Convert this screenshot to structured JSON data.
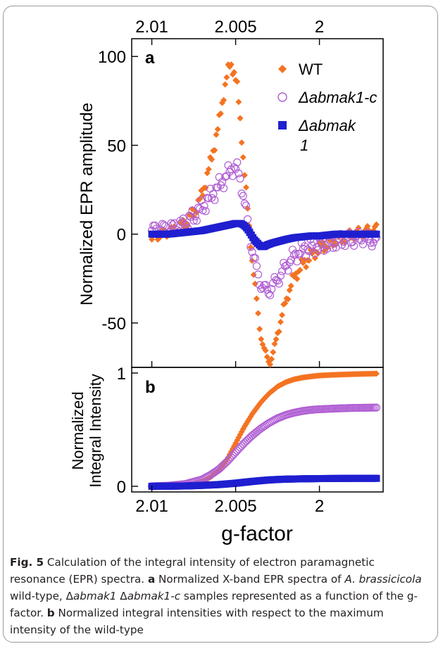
{
  "colors": {
    "wt": "#f47321",
    "comp": "#b05fd3",
    "mut": "#1f1fd0"
  },
  "chart_data": [
    {
      "type": "scatter",
      "panel_label": "a",
      "ylabel": "Normalized EPR amplitude",
      "top_xlabel_ticks": [
        "2.01",
        "2.005",
        "2"
      ],
      "x_ticks": [
        2.01,
        2.005,
        2.0
      ],
      "xlim": [
        2.0112,
        1.9962
      ],
      "ylim": [
        -75,
        110
      ],
      "y_ticks": [
        "100",
        "50",
        "0",
        "-50"
      ],
      "y_tick_values": [
        100,
        50,
        0,
        -50
      ],
      "legend_position": "top-right",
      "series": [
        {
          "name": "WT",
          "marker": "diamond",
          "points": [
            [
              2.01,
              -3
            ],
            [
              2.0095,
              0
            ],
            [
              2.009,
              1
            ],
            [
              2.0085,
              3
            ],
            [
              2.008,
              6
            ],
            [
              2.0075,
              12
            ],
            [
              2.007,
              22
            ],
            [
              2.0065,
              40
            ],
            [
              2.006,
              62
            ],
            [
              2.0057,
              80
            ],
            [
              2.0055,
              90
            ],
            [
              2.0053,
              96
            ],
            [
              2.0051,
              92
            ],
            [
              2.0049,
              82
            ],
            [
              2.0047,
              62
            ],
            [
              2.0045,
              38
            ],
            [
              2.0043,
              15
            ],
            [
              2.0041,
              -5
            ],
            [
              2.0039,
              -25
            ],
            [
              2.0037,
              -42
            ],
            [
              2.0035,
              -56
            ],
            [
              2.0033,
              -66
            ],
            [
              2.0031,
              -70
            ],
            [
              2.0029,
              -71
            ],
            [
              2.0027,
              -66
            ],
            [
              2.0025,
              -55
            ],
            [
              2.0022,
              -45
            ],
            [
              2.0019,
              -34
            ],
            [
              2.0015,
              -24
            ],
            [
              2.001,
              -17
            ],
            [
              2.0005,
              -12
            ],
            [
              2.0,
              -8
            ],
            [
              1.9995,
              -5
            ],
            [
              1.999,
              -3
            ],
            [
              1.9985,
              -2
            ],
            [
              1.998,
              0
            ],
            [
              1.9975,
              1
            ],
            [
              1.997,
              2
            ],
            [
              1.9966,
              3
            ]
          ]
        },
        {
          "name": "Δabmak1-c",
          "marker": "circle",
          "points": [
            [
              2.01,
              2
            ],
            [
              2.0095,
              3
            ],
            [
              2.009,
              3
            ],
            [
              2.0085,
              4
            ],
            [
              2.008,
              6
            ],
            [
              2.0075,
              10
            ],
            [
              2.007,
              15
            ],
            [
              2.0065,
              21
            ],
            [
              2.006,
              27
            ],
            [
              2.0056,
              32
            ],
            [
              2.0053,
              36
            ],
            [
              2.0051,
              38
            ],
            [
              2.0049,
              36
            ],
            [
              2.0047,
              30
            ],
            [
              2.0045,
              20
            ],
            [
              2.0043,
              8
            ],
            [
              2.0041,
              -4
            ],
            [
              2.0039,
              -14
            ],
            [
              2.0037,
              -22
            ],
            [
              2.0035,
              -28
            ],
            [
              2.0033,
              -31
            ],
            [
              2.0031,
              -32
            ],
            [
              2.0029,
              -31
            ],
            [
              2.0027,
              -28
            ],
            [
              2.0024,
              -24
            ],
            [
              2.002,
              -18
            ],
            [
              2.0016,
              -13
            ],
            [
              2.0012,
              -10
            ],
            [
              2.0008,
              -8
            ],
            [
              2.0004,
              -7
            ],
            [
              2.0,
              -6
            ],
            [
              1.9995,
              -5
            ],
            [
              1.999,
              -4
            ],
            [
              1.9985,
              -3
            ],
            [
              1.998,
              -3
            ],
            [
              1.9975,
              -2
            ],
            [
              1.997,
              -3
            ],
            [
              1.9966,
              -5
            ]
          ]
        },
        {
          "name": "Δabmak 1",
          "marker": "square",
          "points": [
            [
              2.01,
              0
            ],
            [
              2.0095,
              0
            ],
            [
              2.009,
              0
            ],
            [
              2.0085,
              0.5
            ],
            [
              2.008,
              1
            ],
            [
              2.0075,
              1.5
            ],
            [
              2.007,
              2
            ],
            [
              2.0065,
              3
            ],
            [
              2.006,
              4
            ],
            [
              2.0055,
              5
            ],
            [
              2.005,
              6
            ],
            [
              2.0047,
              6
            ],
            [
              2.0045,
              5
            ],
            [
              2.0043,
              3
            ],
            [
              2.0041,
              0
            ],
            [
              2.0039,
              -3
            ],
            [
              2.0037,
              -5
            ],
            [
              2.0035,
              -7
            ],
            [
              2.0033,
              -7
            ],
            [
              2.0031,
              -6
            ],
            [
              2.0028,
              -5
            ],
            [
              2.0024,
              -4
            ],
            [
              2.002,
              -3
            ],
            [
              2.0015,
              -2
            ],
            [
              2.001,
              -1.5
            ],
            [
              2.0005,
              -1
            ],
            [
              2.0,
              -1
            ],
            [
              1.9995,
              -0.5
            ],
            [
              1.999,
              0
            ],
            [
              1.9985,
              0
            ],
            [
              1.998,
              0
            ],
            [
              1.9975,
              0
            ],
            [
              1.997,
              0
            ],
            [
              1.9966,
              0
            ]
          ]
        }
      ]
    },
    {
      "type": "scatter",
      "panel_label": "b",
      "ylabel_line1": "Normalized",
      "ylabel_line2": "Integral Intensity",
      "xlabel": "g-factor",
      "x_tick_labels": [
        "2.01",
        "2.005",
        "2"
      ],
      "x_ticks": [
        2.01,
        2.005,
        2.0
      ],
      "xlim": [
        2.0112,
        1.9962
      ],
      "ylim": [
        -0.05,
        1.05
      ],
      "y_ticks": [
        "1",
        "0"
      ],
      "y_tick_values": [
        1,
        0
      ],
      "series": [
        {
          "name": "WT",
          "marker": "diamond",
          "points": [
            [
              2.01,
              0
            ],
            [
              2.009,
              0.003
            ],
            [
              2.008,
              0.01
            ],
            [
              2.007,
              0.04
            ],
            [
              2.0065,
              0.08
            ],
            [
              2.006,
              0.14
            ],
            [
              2.0055,
              0.24
            ],
            [
              2.005,
              0.38
            ],
            [
              2.0045,
              0.52
            ],
            [
              2.004,
              0.64
            ],
            [
              2.0035,
              0.74
            ],
            [
              2.003,
              0.82
            ],
            [
              2.0025,
              0.88
            ],
            [
              2.002,
              0.92
            ],
            [
              2.0015,
              0.945
            ],
            [
              2.001,
              0.96
            ],
            [
              2.0005,
              0.97
            ],
            [
              2.0,
              0.978
            ],
            [
              1.999,
              0.985
            ],
            [
              1.998,
              0.99
            ],
            [
              1.9966,
              0.995
            ]
          ]
        },
        {
          "name": "Δabmak1-c",
          "marker": "circle",
          "points": [
            [
              2.01,
              0
            ],
            [
              2.009,
              0.005
            ],
            [
              2.008,
              0.02
            ],
            [
              2.007,
              0.06
            ],
            [
              2.0065,
              0.1
            ],
            [
              2.006,
              0.15
            ],
            [
              2.0055,
              0.22
            ],
            [
              2.005,
              0.3
            ],
            [
              2.0045,
              0.38
            ],
            [
              2.004,
              0.45
            ],
            [
              2.0035,
              0.51
            ],
            [
              2.003,
              0.56
            ],
            [
              2.0025,
              0.6
            ],
            [
              2.002,
              0.63
            ],
            [
              2.0015,
              0.65
            ],
            [
              2.001,
              0.665
            ],
            [
              2.0005,
              0.675
            ],
            [
              2.0,
              0.68
            ],
            [
              1.999,
              0.687
            ],
            [
              1.998,
              0.692
            ],
            [
              1.9966,
              0.695
            ]
          ]
        },
        {
          "name": "Δabmak 1",
          "marker": "square",
          "points": [
            [
              2.01,
              0
            ],
            [
              2.009,
              0.001
            ],
            [
              2.008,
              0.003
            ],
            [
              2.007,
              0.008
            ],
            [
              2.006,
              0.015
            ],
            [
              2.005,
              0.027
            ],
            [
              2.0045,
              0.035
            ],
            [
              2.004,
              0.043
            ],
            [
              2.0035,
              0.05
            ],
            [
              2.003,
              0.056
            ],
            [
              2.0025,
              0.06
            ],
            [
              2.002,
              0.063
            ],
            [
              2.001,
              0.066
            ],
            [
              2.0,
              0.068
            ],
            [
              1.999,
              0.069
            ],
            [
              1.998,
              0.07
            ],
            [
              1.9966,
              0.07
            ]
          ]
        }
      ]
    }
  ],
  "legend": {
    "items": [
      "WT",
      "Δabmak1-c",
      "Δabmak"
    ],
    "item3_line2": "1"
  },
  "caption": {
    "fig_label": "Fig. 5",
    "text1": "  Calculation of the integral intensity of electron paramagnetic resonance (EPR) spectra. ",
    "a_label": "a",
    "text2": " Normalized X-band EPR spectra of ",
    "species": "A. brassicicola",
    "text3": " wild-type, Δ",
    "mut_name": "abmak1",
    "text4": " Δ",
    "comp_name": "abmak1-c",
    "text5": " samples represented as a function of the g-factor. ",
    "b_label": "b",
    "text6": " Normalized integral intensities with respect to the maximum intensity of the wild-type"
  }
}
